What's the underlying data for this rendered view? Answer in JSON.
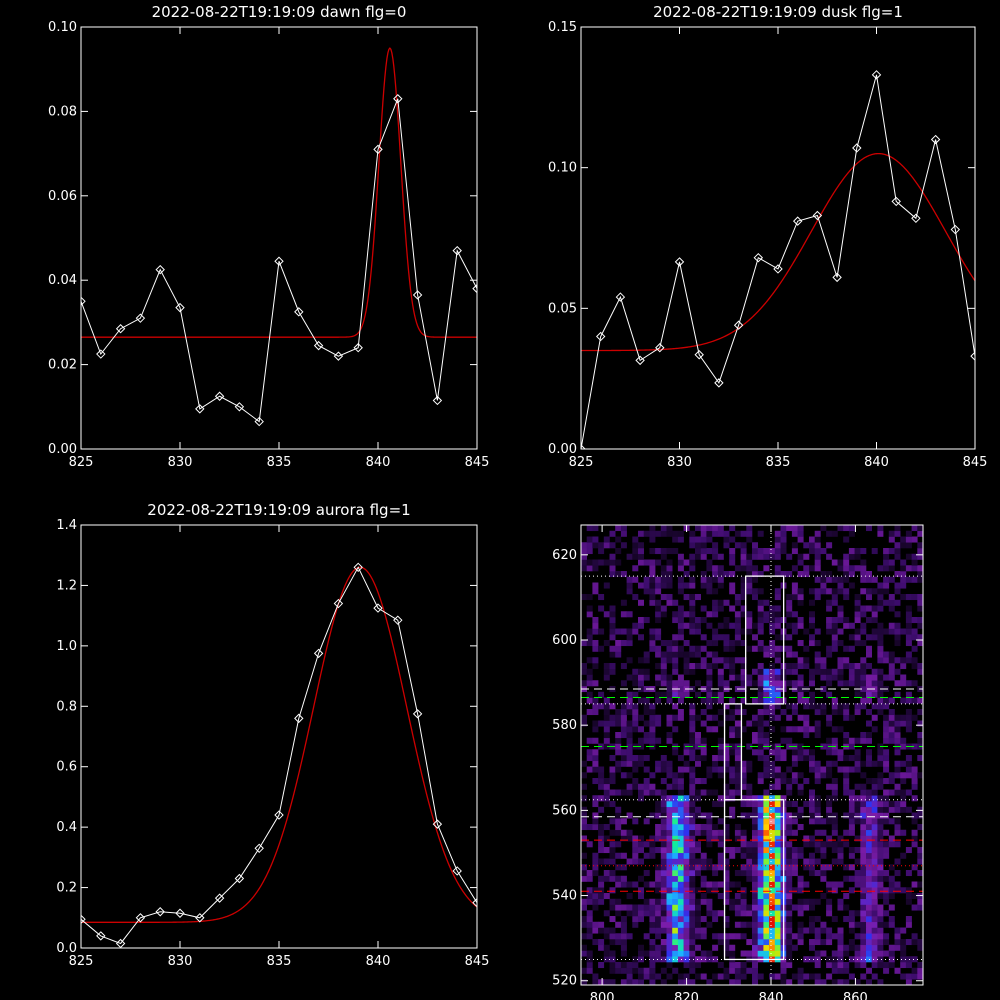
{
  "chart_data": [
    {
      "type": "line",
      "title": "2022-08-22T19:19:09 dawn flg=0",
      "xlim": [
        825,
        845
      ],
      "ylim": [
        0,
        0.1
      ],
      "x_ticks": [
        "825",
        "830",
        "835",
        "840",
        "845"
      ],
      "y_ticks": [
        "0.00",
        "0.02",
        "0.04",
        "0.06",
        "0.08",
        "0.10"
      ],
      "series": [
        {
          "kind": "data",
          "color": "#ffffff",
          "marker": "diamond",
          "x": [
            825,
            826,
            827,
            828,
            829,
            830,
            831,
            832,
            833,
            834,
            835,
            836,
            837,
            838,
            839,
            840,
            841,
            842,
            843,
            844,
            845
          ],
          "y": [
            0.035,
            0.0225,
            0.0285,
            0.031,
            0.0425,
            0.0335,
            0.0095,
            0.0125,
            0.01,
            0.0065,
            0.0445,
            0.0325,
            0.0245,
            0.022,
            0.024,
            0.071,
            0.083,
            0.0365,
            0.0115,
            0.047,
            0.038
          ]
        },
        {
          "kind": "fit",
          "color": "#cc0000",
          "model": "gaussian",
          "baseline": 0.0265,
          "amplitude": 0.0685,
          "center": 840.6,
          "sigma": 0.55
        }
      ]
    },
    {
      "type": "line",
      "title": "2022-08-22T19:19:09 dusk flg=1",
      "xlim": [
        825,
        845
      ],
      "ylim": [
        0,
        0.15
      ],
      "x_ticks": [
        "825",
        "830",
        "835",
        "840",
        "845"
      ],
      "y_ticks": [
        "0.00",
        "0.05",
        "0.10",
        "0.15"
      ],
      "series": [
        {
          "kind": "data",
          "color": "#ffffff",
          "marker": "diamond",
          "x": [
            825,
            826,
            827,
            828,
            829,
            830,
            831,
            832,
            833,
            834,
            835,
            836,
            837,
            838,
            839,
            840,
            841,
            842,
            843,
            844,
            845
          ],
          "y": [
            0.0,
            0.04,
            0.054,
            0.0315,
            0.036,
            0.0665,
            0.0335,
            0.0235,
            0.044,
            0.068,
            0.064,
            0.081,
            0.083,
            0.061,
            0.107,
            0.133,
            0.088,
            0.082,
            0.11,
            0.078,
            0.033
          ]
        },
        {
          "kind": "fit",
          "color": "#cc0000",
          "model": "gaussian",
          "baseline": 0.035,
          "amplitude": 0.07,
          "center": 840.1,
          "sigma": 3.4
        }
      ]
    },
    {
      "type": "line",
      "title": "2022-08-22T19:19:09 aurora flg=1",
      "xlim": [
        825,
        845
      ],
      "ylim": [
        0,
        1.4
      ],
      "x_ticks": [
        "825",
        "830",
        "835",
        "840",
        "845"
      ],
      "y_ticks": [
        "0.0",
        "0.2",
        "0.4",
        "0.6",
        "0.8",
        "1.0",
        "1.2",
        "1.4"
      ],
      "series": [
        {
          "kind": "data",
          "color": "#ffffff",
          "marker": "diamond",
          "x": [
            825,
            826,
            827,
            828,
            829,
            830,
            831,
            832,
            833,
            834,
            835,
            836,
            837,
            838,
            839,
            840,
            841,
            842,
            843,
            844,
            845
          ],
          "y": [
            0.095,
            0.04,
            0.015,
            0.1,
            0.12,
            0.115,
            0.1,
            0.165,
            0.23,
            0.33,
            0.44,
            0.76,
            0.975,
            1.14,
            1.26,
            1.125,
            1.085,
            0.775,
            0.41,
            0.255,
            0.15
          ]
        },
        {
          "kind": "fit",
          "color": "#cc0000",
          "model": "gaussian",
          "baseline": 0.085,
          "amplitude": 1.175,
          "center": 839.1,
          "sigma": 2.35
        }
      ]
    },
    {
      "type": "heatmap",
      "xlim": [
        795,
        876
      ],
      "ylim": [
        519,
        627
      ],
      "x_ticks": [
        "800",
        "820",
        "840",
        "860"
      ],
      "y_ticks": [
        "520",
        "540",
        "560",
        "580",
        "600",
        "620"
      ],
      "colormap": [
        "#000000",
        "#3c0c6c",
        "#7c1ca8",
        "#3030ee",
        "#1cb4ff",
        "#10ee9c",
        "#a8f010",
        "#ffd000",
        "#ff5000",
        "#e00000",
        "#ffffff"
      ],
      "emission_bands": [
        {
          "x_center": 840.0,
          "x_width": 1.8,
          "y_range": [
            525,
            563
          ],
          "intensity": 0.6
        },
        {
          "x_center": 818.0,
          "x_width": 1.8,
          "y_range": [
            525,
            563
          ],
          "intensity": 0.36
        },
        {
          "x_center": 863.5,
          "x_width": 1.5,
          "y_range": [
            525,
            563
          ],
          "intensity": 0.17
        },
        {
          "x_center": 840.0,
          "x_width": 1.6,
          "y_range": [
            585,
            593
          ],
          "intensity": 0.24
        },
        {
          "x_center": 818.0,
          "x_width": 1.6,
          "y_range": [
            586,
            591
          ],
          "intensity": 0.14
        },
        {
          "x_center": 864.0,
          "x_width": 1.5,
          "y_range": [
            586,
            592
          ],
          "intensity": 0.12
        }
      ],
      "hlines": [
        {
          "y": 615,
          "color": "#ffffff",
          "style": "dotted"
        },
        {
          "y": 588.5,
          "color": "#ffffff",
          "style": "dashed"
        },
        {
          "y": 586.5,
          "color": "#00ff00",
          "style": "dashed"
        },
        {
          "y": 585,
          "color": "#ffffff",
          "style": "dotted"
        },
        {
          "y": 575,
          "color": "#00ff00",
          "style": "dashed"
        },
        {
          "y": 562.5,
          "color": "#ffffff",
          "style": "dotted"
        },
        {
          "y": 558.5,
          "color": "#ffffff",
          "style": "dashed"
        },
        {
          "y": 553,
          "color": "#ff0000",
          "style": "dashed"
        },
        {
          "y": 547,
          "color": "#ff0000",
          "style": "dotted"
        },
        {
          "y": 541,
          "color": "#ff0000",
          "style": "dashed"
        },
        {
          "y": 525,
          "color": "#ffffff",
          "style": "dotted"
        }
      ],
      "vlines": [
        {
          "x": 840,
          "color": "#ffffff",
          "style": "dotted"
        }
      ],
      "boxes": [
        {
          "x": [
            834,
            843
          ],
          "y": [
            585,
            615
          ]
        },
        {
          "x": [
            829,
            833
          ],
          "y": [
            562.5,
            585
          ]
        },
        {
          "x": [
            829,
            843
          ],
          "y": [
            525,
            562.5
          ]
        }
      ]
    }
  ]
}
